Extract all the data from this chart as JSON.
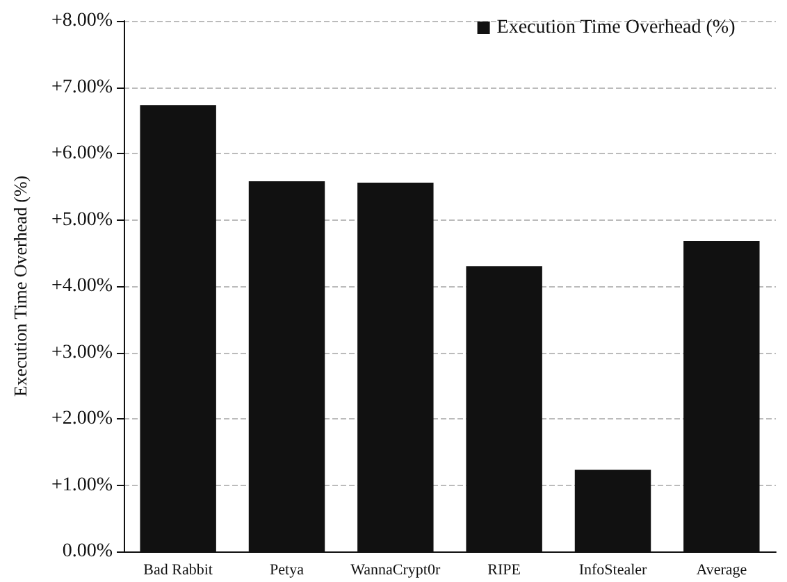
{
  "chart_data": {
    "type": "bar",
    "ylabel": "Execution Time Overhead (%)",
    "categories": [
      "Bad Rabbit",
      "Petya",
      "WannaCrypt0r",
      "RIPE",
      "InfoStealer",
      "Average"
    ],
    "series": [
      {
        "name": "Execution Time Overhead (%)",
        "color": "#111111",
        "values": [
          6.73,
          5.58,
          5.56,
          4.3,
          1.23,
          4.68
        ]
      }
    ],
    "ylim": [
      0,
      8
    ],
    "yticks": [
      {
        "value": 0,
        "label": "0.00%"
      },
      {
        "value": 1,
        "label": "+1.00%"
      },
      {
        "value": 2,
        "label": "+2.00%"
      },
      {
        "value": 3,
        "label": "+3.00%"
      },
      {
        "value": 4,
        "label": "+4.00%"
      },
      {
        "value": 5,
        "label": "+5.00%"
      },
      {
        "value": 6,
        "label": "+6.00%"
      },
      {
        "value": 7,
        "label": "+7.00%"
      },
      {
        "value": 8,
        "label": "+8.00%"
      }
    ],
    "grid": "y",
    "legend": "top right"
  }
}
